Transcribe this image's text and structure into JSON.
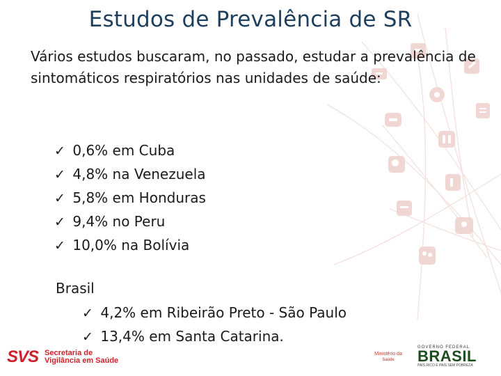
{
  "slide": {
    "title": "Estudos de Prevalência de SR",
    "intro": "Vários estudos buscaram, no passado, estudar a prevalência de sintomáticos respiratórios nas unidades de saúde:",
    "check_glyph": "✓",
    "studies": [
      {
        "text": "0,6% em Cuba"
      },
      {
        "text": "4,8% na Venezuela"
      },
      {
        "text": "5,8% em Honduras"
      },
      {
        "text": "9,4% no Peru"
      },
      {
        "text": "10,0% na Bolívia"
      }
    ],
    "brasil_label": "Brasil",
    "brasil_studies": [
      {
        "text": "4,2% em Ribeirão Preto - São Paulo"
      },
      {
        "text": "13,4% em Santa Catarina."
      }
    ]
  },
  "footer": {
    "svs_logo": "SVS",
    "svs_line1": "Secretaria de",
    "svs_line2": "Vigilância em Saúde",
    "ministerio_top": "Ministério da",
    "ministerio_bottom": "Saúde",
    "gov_line": "GOVERNO FEDERAL",
    "brasil_word": "BRASIL",
    "slogan": "PAÍS RICO É PAÍS SEM POBREZA"
  },
  "colors": {
    "title": "#1f3f5f",
    "accent_red": "#d0202a",
    "decor": "#f1d7d3"
  },
  "icons": [
    "mortar-icon",
    "medical-kit-icon",
    "syringe-icon",
    "pills-icon",
    "clipboard-icon",
    "telephone-icon",
    "lungs-icon",
    "magnifier-icon",
    "microscope-icon",
    "hospital-bed-icon",
    "figure-icon",
    "family-icon"
  ]
}
